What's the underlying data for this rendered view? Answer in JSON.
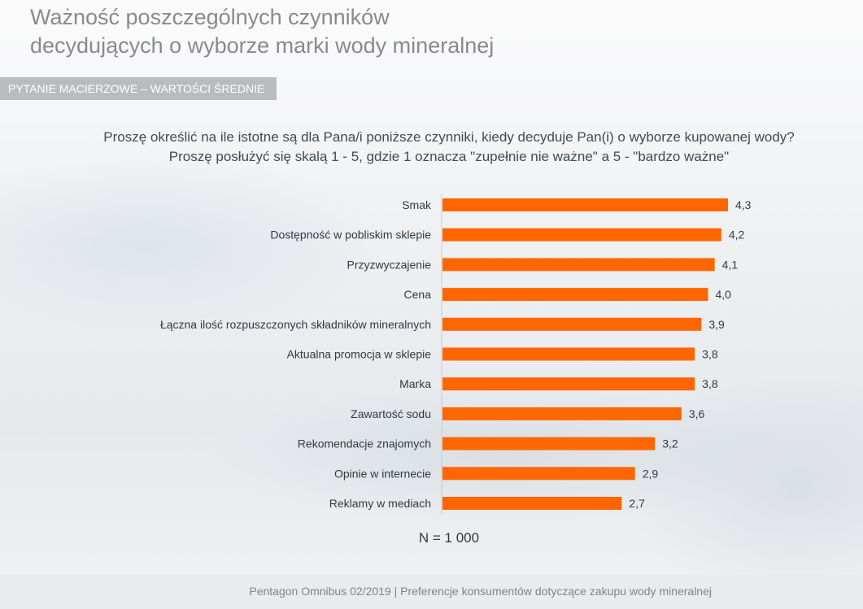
{
  "header": {
    "title_line1": "Ważność poszczególnych czynników",
    "title_line2": "decydujących o wyborze marki wody mineralnej",
    "tag": "PYTANIE MACIERZOWE – WARTOŚCI ŚREDNIE"
  },
  "question": {
    "line1": "Proszę określić na ile istotne są dla Pana/i poniższe czynniki, kiedy decyduje Pan(i) o wyborze kupowanej wody?",
    "line2": "Proszę posłużyć się skalą 1 - 5, gdzie 1 oznacza \"zupełnie nie ważne\" a 5 - \"bardzo ważne\""
  },
  "chart_data": {
    "type": "bar",
    "orientation": "horizontal",
    "categories": [
      "Smak",
      "Dostępność w pobliskim sklepie",
      "Przyzwyczajenie",
      "Cena",
      "Łączna ilość rozpuszczonych składników mineralnych",
      "Aktualna promocja w sklepie",
      "Marka",
      "Zawartość sodu",
      "Rekomendacje znajomych",
      "Opinie w internecie",
      "Reklamy w mediach"
    ],
    "values": [
      4.3,
      4.2,
      4.1,
      4.0,
      3.9,
      3.8,
      3.8,
      3.6,
      3.2,
      2.9,
      2.7
    ],
    "value_labels": [
      "4,3",
      "4,2",
      "4,1",
      "4,0",
      "3,9",
      "3,8",
      "3,8",
      "3,6",
      "3,2",
      "2,9",
      "2,7"
    ],
    "xlim": [
      0,
      5
    ],
    "bar_color": "#ff6600",
    "grid": false,
    "legend": "none"
  },
  "sample": "N = 1 000",
  "footer": "Pentagon Omnibus 02/2019 | Preferencje konsumentów dotyczące zakupu wody mineralnej"
}
